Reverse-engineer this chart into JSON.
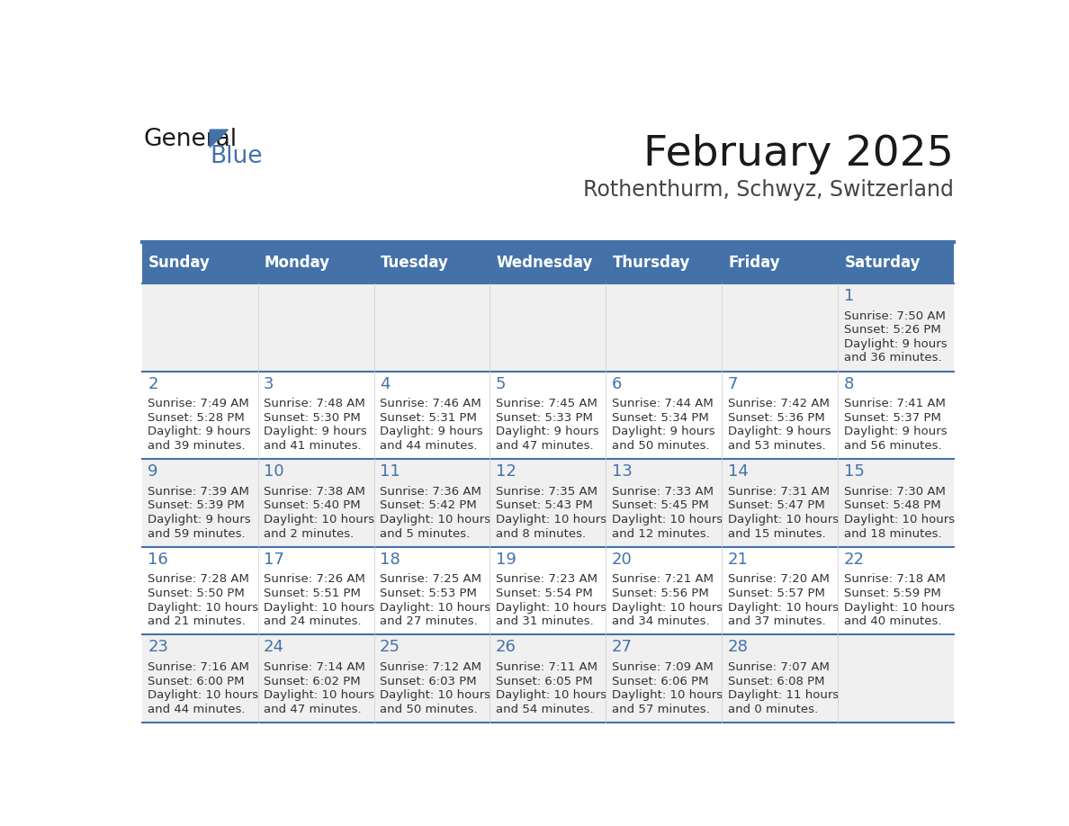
{
  "title": "February 2025",
  "subtitle": "Rothenthurm, Schwyz, Switzerland",
  "header_bg": "#4472A8",
  "header_text": "#FFFFFF",
  "day_names": [
    "Sunday",
    "Monday",
    "Tuesday",
    "Wednesday",
    "Thursday",
    "Friday",
    "Saturday"
  ],
  "row_bg_odd": "#F0F0F0",
  "row_bg_even": "#FFFFFF",
  "separator_color": "#4472A8",
  "number_color": "#4472A8",
  "text_color": "#333333",
  "logo_color": "#4472A8",
  "weeks": [
    {
      "days": [
        {
          "day": null,
          "sunrise": null,
          "sunset": null,
          "daylight": null
        },
        {
          "day": null,
          "sunrise": null,
          "sunset": null,
          "daylight": null
        },
        {
          "day": null,
          "sunrise": null,
          "sunset": null,
          "daylight": null
        },
        {
          "day": null,
          "sunrise": null,
          "sunset": null,
          "daylight": null
        },
        {
          "day": null,
          "sunrise": null,
          "sunset": null,
          "daylight": null
        },
        {
          "day": null,
          "sunrise": null,
          "sunset": null,
          "daylight": null
        },
        {
          "day": 1,
          "sunrise": "7:50 AM",
          "sunset": "5:26 PM",
          "daylight": "9 hours\nand 36 minutes."
        }
      ]
    },
    {
      "days": [
        {
          "day": 2,
          "sunrise": "7:49 AM",
          "sunset": "5:28 PM",
          "daylight": "9 hours\nand 39 minutes."
        },
        {
          "day": 3,
          "sunrise": "7:48 AM",
          "sunset": "5:30 PM",
          "daylight": "9 hours\nand 41 minutes."
        },
        {
          "day": 4,
          "sunrise": "7:46 AM",
          "sunset": "5:31 PM",
          "daylight": "9 hours\nand 44 minutes."
        },
        {
          "day": 5,
          "sunrise": "7:45 AM",
          "sunset": "5:33 PM",
          "daylight": "9 hours\nand 47 minutes."
        },
        {
          "day": 6,
          "sunrise": "7:44 AM",
          "sunset": "5:34 PM",
          "daylight": "9 hours\nand 50 minutes."
        },
        {
          "day": 7,
          "sunrise": "7:42 AM",
          "sunset": "5:36 PM",
          "daylight": "9 hours\nand 53 minutes."
        },
        {
          "day": 8,
          "sunrise": "7:41 AM",
          "sunset": "5:37 PM",
          "daylight": "9 hours\nand 56 minutes."
        }
      ]
    },
    {
      "days": [
        {
          "day": 9,
          "sunrise": "7:39 AM",
          "sunset": "5:39 PM",
          "daylight": "9 hours\nand 59 minutes."
        },
        {
          "day": 10,
          "sunrise": "7:38 AM",
          "sunset": "5:40 PM",
          "daylight": "10 hours\nand 2 minutes."
        },
        {
          "day": 11,
          "sunrise": "7:36 AM",
          "sunset": "5:42 PM",
          "daylight": "10 hours\nand 5 minutes."
        },
        {
          "day": 12,
          "sunrise": "7:35 AM",
          "sunset": "5:43 PM",
          "daylight": "10 hours\nand 8 minutes."
        },
        {
          "day": 13,
          "sunrise": "7:33 AM",
          "sunset": "5:45 PM",
          "daylight": "10 hours\nand 12 minutes."
        },
        {
          "day": 14,
          "sunrise": "7:31 AM",
          "sunset": "5:47 PM",
          "daylight": "10 hours\nand 15 minutes."
        },
        {
          "day": 15,
          "sunrise": "7:30 AM",
          "sunset": "5:48 PM",
          "daylight": "10 hours\nand 18 minutes."
        }
      ]
    },
    {
      "days": [
        {
          "day": 16,
          "sunrise": "7:28 AM",
          "sunset": "5:50 PM",
          "daylight": "10 hours\nand 21 minutes."
        },
        {
          "day": 17,
          "sunrise": "7:26 AM",
          "sunset": "5:51 PM",
          "daylight": "10 hours\nand 24 minutes."
        },
        {
          "day": 18,
          "sunrise": "7:25 AM",
          "sunset": "5:53 PM",
          "daylight": "10 hours\nand 27 minutes."
        },
        {
          "day": 19,
          "sunrise": "7:23 AM",
          "sunset": "5:54 PM",
          "daylight": "10 hours\nand 31 minutes."
        },
        {
          "day": 20,
          "sunrise": "7:21 AM",
          "sunset": "5:56 PM",
          "daylight": "10 hours\nand 34 minutes."
        },
        {
          "day": 21,
          "sunrise": "7:20 AM",
          "sunset": "5:57 PM",
          "daylight": "10 hours\nand 37 minutes."
        },
        {
          "day": 22,
          "sunrise": "7:18 AM",
          "sunset": "5:59 PM",
          "daylight": "10 hours\nand 40 minutes."
        }
      ]
    },
    {
      "days": [
        {
          "day": 23,
          "sunrise": "7:16 AM",
          "sunset": "6:00 PM",
          "daylight": "10 hours\nand 44 minutes."
        },
        {
          "day": 24,
          "sunrise": "7:14 AM",
          "sunset": "6:02 PM",
          "daylight": "10 hours\nand 47 minutes."
        },
        {
          "day": 25,
          "sunrise": "7:12 AM",
          "sunset": "6:03 PM",
          "daylight": "10 hours\nand 50 minutes."
        },
        {
          "day": 26,
          "sunrise": "7:11 AM",
          "sunset": "6:05 PM",
          "daylight": "10 hours\nand 54 minutes."
        },
        {
          "day": 27,
          "sunrise": "7:09 AM",
          "sunset": "6:06 PM",
          "daylight": "10 hours\nand 57 minutes."
        },
        {
          "day": 28,
          "sunrise": "7:07 AM",
          "sunset": "6:08 PM",
          "daylight": "11 hours\nand 0 minutes."
        },
        {
          "day": null,
          "sunrise": null,
          "sunset": null,
          "daylight": null
        }
      ]
    }
  ]
}
